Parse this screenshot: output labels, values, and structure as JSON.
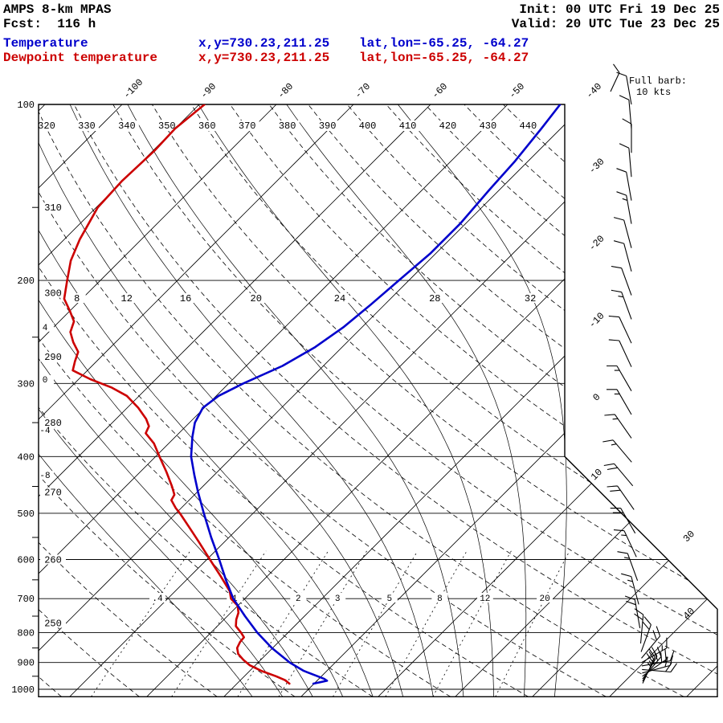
{
  "header": {
    "model": "AMPS 8-km MPAS",
    "fcst": "Fcst:  116 h",
    "init": "Init: 00 UTC Fri 19 Dec 25",
    "valid": "Valid: 20 UTC Tue 23 Dec 25",
    "temp_label": "Temperature",
    "temp_xy": "x,y=730.23,211.25",
    "temp_latlon": "lat,lon=-65.25, -64.27",
    "dewp_label": "Dewpoint temperature",
    "dewp_xy": "x,y=730.23,211.25",
    "dewp_latlon": "lat,lon=-65.25, -64.27"
  },
  "barb_legend": {
    "line1": "Full barb:",
    "line2": "10 kts"
  },
  "colors": {
    "temperature": "#0000cc",
    "dewpoint": "#cc0000",
    "grid": "#000000",
    "background": "#ffffff"
  },
  "axes": {
    "pressure_labels": [
      100,
      200,
      300,
      400,
      500,
      600,
      700,
      800,
      900,
      1000
    ],
    "pressure_minor_ticks": [
      150,
      250,
      350,
      450,
      550,
      650,
      750,
      850,
      950
    ],
    "top_temperature_labels": [
      -100,
      -90,
      -80,
      -70,
      -60,
      -50,
      -40
    ],
    "right_temperature_labels": [
      -30,
      -20,
      -10,
      0,
      10,
      30,
      40
    ],
    "dry_adiabat_top_labels": [
      320,
      330,
      340,
      350,
      360,
      370,
      380,
      390,
      400,
      410,
      420,
      430,
      440
    ],
    "dry_adiabat_left_labels": [
      310,
      300,
      290,
      280,
      270,
      260,
      250
    ],
    "moist_adiabat_top_labels": [
      8,
      12,
      16,
      20,
      24,
      28,
      32
    ],
    "moist_adiabat_left_labels": [
      4,
      0,
      -4,
      -8
    ],
    "mixing_ratio_labels": [
      ".4",
      "1",
      "2",
      "3",
      "5",
      "8",
      "12",
      "20"
    ]
  },
  "chart_data": {
    "type": "skewt-log-p",
    "pressure_unit": "hPa",
    "temperature_unit": "degC",
    "wind_unit": "kts",
    "pressure_range": [
      100,
      1030
    ],
    "temperature_profile": [
      [
        100,
        -43.2
      ],
      [
        110,
        -42.5
      ],
      [
        125,
        -41.7
      ],
      [
        140,
        -41.3
      ],
      [
        160,
        -40.7
      ],
      [
        180,
        -40.7
      ],
      [
        200,
        -41.3
      ],
      [
        220,
        -41.8
      ],
      [
        240,
        -42.4
      ],
      [
        260,
        -43.5
      ],
      [
        280,
        -45.3
      ],
      [
        300,
        -48.1
      ],
      [
        315,
        -49.7
      ],
      [
        330,
        -50.2
      ],
      [
        350,
        -49.3
      ],
      [
        370,
        -47.8
      ],
      [
        400,
        -45.4
      ],
      [
        430,
        -42.6
      ],
      [
        460,
        -39.9
      ],
      [
        500,
        -36.4
      ],
      [
        550,
        -32.3
      ],
      [
        600,
        -28.4
      ],
      [
        650,
        -24.9
      ],
      [
        700,
        -21.5
      ],
      [
        750,
        -17.7
      ],
      [
        800,
        -14.0
      ],
      [
        850,
        -10.1
      ],
      [
        900,
        -5.9
      ],
      [
        930,
        -3.0
      ],
      [
        950,
        -0.5
      ],
      [
        960,
        0.7
      ],
      [
        967,
        1.3
      ],
      [
        972,
        0.7
      ],
      [
        978,
        -0.1
      ]
    ],
    "dewpoint_profile": [
      [
        100,
        -89.3
      ],
      [
        110,
        -90.0
      ],
      [
        120,
        -89.8
      ],
      [
        135,
        -90.1
      ],
      [
        150,
        -89.8
      ],
      [
        170,
        -88.0
      ],
      [
        185,
        -86.4
      ],
      [
        200,
        -84.3
      ],
      [
        215,
        -82.3
      ],
      [
        225,
        -80.1
      ],
      [
        235,
        -78.1
      ],
      [
        245,
        -77.2
      ],
      [
        255,
        -75.5
      ],
      [
        265,
        -73.6
      ],
      [
        275,
        -72.8
      ],
      [
        285,
        -71.9
      ],
      [
        295,
        -68.5
      ],
      [
        305,
        -64.6
      ],
      [
        315,
        -61.6
      ],
      [
        330,
        -58.6
      ],
      [
        345,
        -56.1
      ],
      [
        355,
        -54.8
      ],
      [
        365,
        -54.3
      ],
      [
        380,
        -51.9
      ],
      [
        400,
        -49.5
      ],
      [
        425,
        -46.6
      ],
      [
        450,
        -44.0
      ],
      [
        465,
        -42.6
      ],
      [
        475,
        -42.3
      ],
      [
        490,
        -40.7
      ],
      [
        500,
        -39.5
      ],
      [
        530,
        -36.3
      ],
      [
        560,
        -33.3
      ],
      [
        600,
        -29.6
      ],
      [
        640,
        -26.1
      ],
      [
        680,
        -22.9
      ],
      [
        700,
        -21.8
      ],
      [
        720,
        -20.0
      ],
      [
        740,
        -19.0
      ],
      [
        760,
        -18.4
      ],
      [
        780,
        -17.6
      ],
      [
        800,
        -16.1
      ],
      [
        815,
        -15.1
      ],
      [
        830,
        -15.0
      ],
      [
        850,
        -14.6
      ],
      [
        870,
        -13.7
      ],
      [
        890,
        -12.3
      ],
      [
        910,
        -10.7
      ],
      [
        930,
        -8.5
      ],
      [
        950,
        -5.9
      ],
      [
        965,
        -4.2
      ],
      [
        978,
        -3.2
      ]
    ],
    "wind_barbs": [
      [
        100,
        350,
        10
      ],
      [
        110,
        355,
        10
      ],
      [
        121,
        0,
        10
      ],
      [
        133,
        355,
        10
      ],
      [
        146,
        350,
        10
      ],
      [
        160,
        350,
        15
      ],
      [
        176,
        345,
        10
      ],
      [
        193,
        345,
        10
      ],
      [
        212,
        340,
        10
      ],
      [
        233,
        340,
        15
      ],
      [
        256,
        335,
        10
      ],
      [
        281,
        335,
        10
      ],
      [
        309,
        330,
        15
      ],
      [
        339,
        330,
        15
      ],
      [
        372,
        325,
        15
      ],
      [
        409,
        320,
        15
      ],
      [
        449,
        320,
        20
      ],
      [
        493,
        325,
        20
      ],
      [
        541,
        330,
        20
      ],
      [
        594,
        335,
        15
      ],
      [
        652,
        340,
        15
      ],
      [
        716,
        345,
        15
      ],
      [
        786,
        350,
        20
      ],
      [
        835,
        5,
        20
      ],
      [
        863,
        20,
        20
      ],
      [
        885,
        40,
        20
      ],
      [
        900,
        60,
        15
      ],
      [
        912,
        80,
        15
      ],
      [
        925,
        95,
        20
      ],
      [
        938,
        75,
        20
      ],
      [
        950,
        55,
        20
      ],
      [
        960,
        40,
        25
      ],
      [
        969,
        30,
        25
      ],
      [
        977,
        25,
        25
      ]
    ]
  }
}
